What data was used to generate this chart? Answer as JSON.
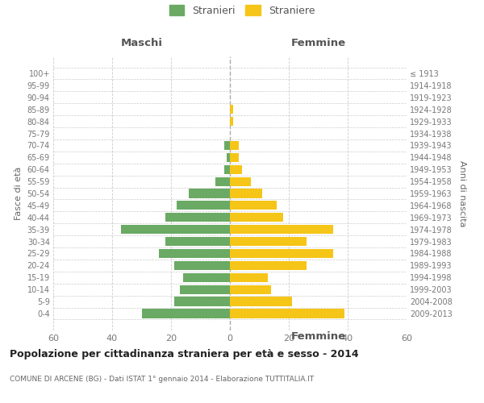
{
  "age_groups": [
    "100+",
    "95-99",
    "90-94",
    "85-89",
    "80-84",
    "75-79",
    "70-74",
    "65-69",
    "60-64",
    "55-59",
    "50-54",
    "45-49",
    "40-44",
    "35-39",
    "30-34",
    "25-29",
    "20-24",
    "15-19",
    "10-14",
    "5-9",
    "0-4"
  ],
  "birth_years": [
    "≤ 1913",
    "1914-1918",
    "1919-1923",
    "1924-1928",
    "1929-1933",
    "1934-1938",
    "1939-1943",
    "1944-1948",
    "1949-1953",
    "1954-1958",
    "1959-1963",
    "1964-1968",
    "1969-1973",
    "1974-1978",
    "1979-1983",
    "1984-1988",
    "1989-1993",
    "1994-1998",
    "1999-2003",
    "2004-2008",
    "2009-2013"
  ],
  "maschi": [
    0,
    0,
    0,
    0,
    0,
    0,
    2,
    1,
    2,
    5,
    14,
    18,
    22,
    37,
    22,
    24,
    19,
    16,
    17,
    19,
    30
  ],
  "femmine": [
    0,
    0,
    0,
    1,
    1,
    0,
    3,
    3,
    4,
    7,
    11,
    16,
    18,
    35,
    26,
    35,
    26,
    13,
    14,
    21,
    39
  ],
  "maschi_color": "#6aaa64",
  "femmine_color": "#f5c518",
  "title": "Popolazione per cittadinanza straniera per età e sesso - 2014",
  "subtitle": "COMUNE DI ARCENE (BG) - Dati ISTAT 1° gennaio 2014 - Elaborazione TUTTITALIA.IT",
  "ylabel_left": "Fasce di età",
  "ylabel_right": "Anni di nascita",
  "xlabel_maschi": "Maschi",
  "xlabel_femmine": "Femmine",
  "legend_maschi": "Stranieri",
  "legend_femmine": "Straniere",
  "xlim": 60,
  "background_color": "#ffffff",
  "grid_color": "#cccccc",
  "bar_height": 0.75
}
